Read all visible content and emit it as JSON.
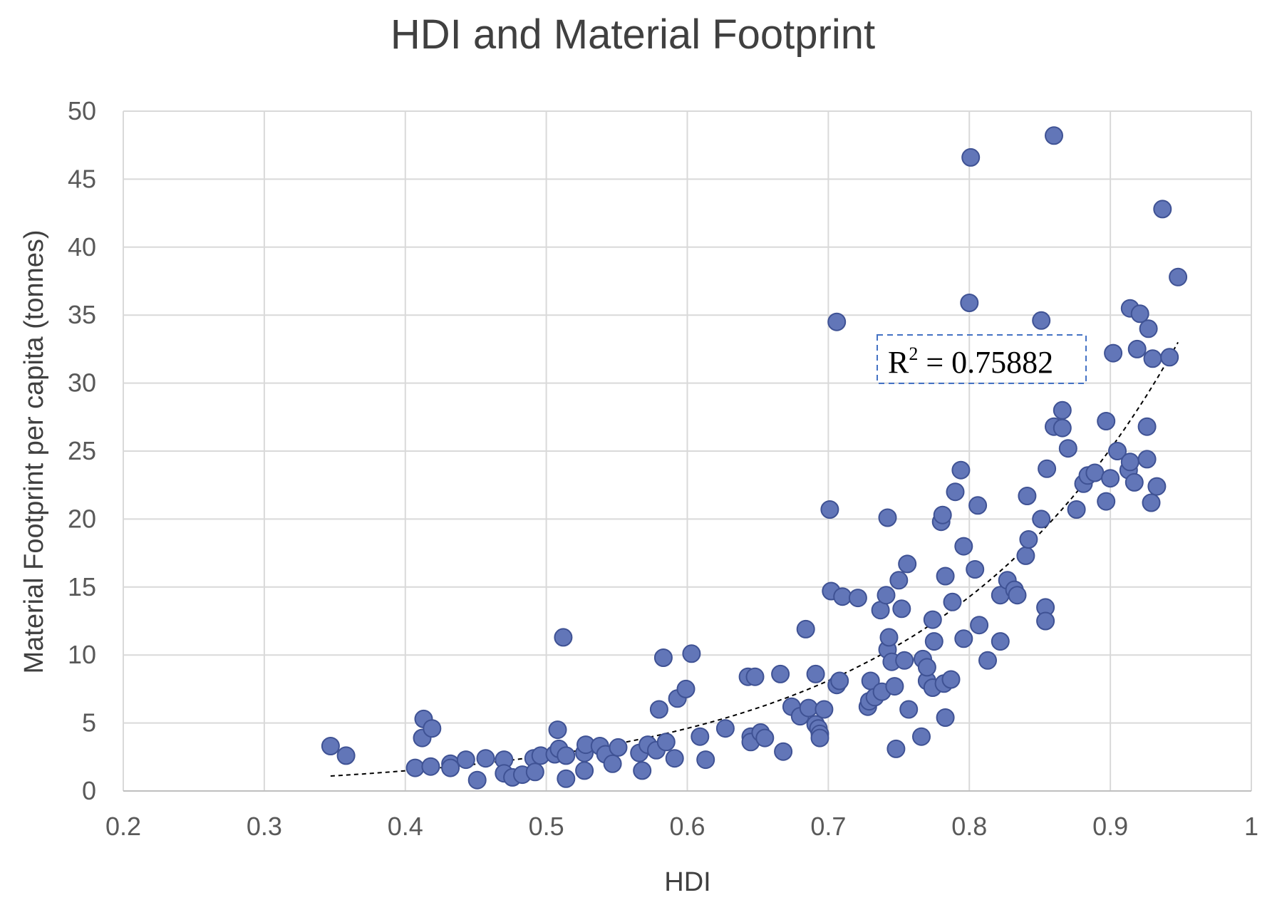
{
  "colors": {
    "point_fill": "#6276b8",
    "point_stroke": "#3f5294",
    "grid": "#d9d9d9",
    "trendline": "#000000",
    "r2_border": "#4472c4"
  },
  "chart_data": {
    "type": "scatter",
    "title": "HDI and Material Footprint",
    "xlabel": "HDI",
    "ylabel": "Material Footprint per capita (tonnes)",
    "xlim": [
      0.2,
      1
    ],
    "ylim": [
      0,
      50
    ],
    "x_ticks": [
      0.2,
      0.3,
      0.4,
      0.5,
      0.6,
      0.7,
      0.8,
      0.9,
      1
    ],
    "x_tick_labels": [
      "0.2",
      "0.3",
      "0.4",
      "0.5",
      "0.6",
      "0.7",
      "0.8",
      "0.9",
      "1"
    ],
    "y_ticks": [
      0,
      5,
      10,
      15,
      20,
      25,
      30,
      35,
      40,
      45,
      50
    ],
    "y_tick_labels": [
      "0",
      "5",
      "10",
      "15",
      "20",
      "25",
      "30",
      "35",
      "40",
      "45",
      "50"
    ],
    "grid": true,
    "legend": "none",
    "trendline": {
      "type": "exponential",
      "style": "dashed",
      "x_range": [
        0.347,
        0.948
      ],
      "points": [
        [
          0.347,
          1.1
        ],
        [
          0.45,
          1.9
        ],
        [
          0.55,
          3.0
        ],
        [
          0.65,
          5.2
        ],
        [
          0.7,
          6.9
        ],
        [
          0.75,
          9.5
        ],
        [
          0.8,
          13.2
        ],
        [
          0.85,
          18.5
        ],
        [
          0.9,
          24.8
        ],
        [
          0.948,
          33.0
        ]
      ],
      "annotation": "R² = 0.75882"
    },
    "points": [
      [
        0.347,
        3.3
      ],
      [
        0.358,
        2.6
      ],
      [
        0.407,
        1.7
      ],
      [
        0.412,
        3.9
      ],
      [
        0.413,
        5.3
      ],
      [
        0.419,
        4.6
      ],
      [
        0.418,
        1.8
      ],
      [
        0.432,
        2.0
      ],
      [
        0.432,
        1.7
      ],
      [
        0.443,
        2.3
      ],
      [
        0.451,
        0.8
      ],
      [
        0.457,
        2.4
      ],
      [
        0.47,
        2.3
      ],
      [
        0.47,
        1.3
      ],
      [
        0.476,
        1.0
      ],
      [
        0.483,
        1.2
      ],
      [
        0.491,
        2.4
      ],
      [
        0.492,
        1.4
      ],
      [
        0.496,
        2.6
      ],
      [
        0.506,
        2.7
      ],
      [
        0.508,
        4.5
      ],
      [
        0.509,
        3.1
      ],
      [
        0.512,
        11.3
      ],
      [
        0.514,
        0.9
      ],
      [
        0.514,
        2.6
      ],
      [
        0.527,
        1.5
      ],
      [
        0.527,
        2.8
      ],
      [
        0.528,
        3.4
      ],
      [
        0.538,
        3.3
      ],
      [
        0.542,
        2.7
      ],
      [
        0.547,
        2.0
      ],
      [
        0.551,
        3.2
      ],
      [
        0.566,
        2.8
      ],
      [
        0.568,
        1.5
      ],
      [
        0.572,
        3.4
      ],
      [
        0.578,
        3.0
      ],
      [
        0.58,
        6.0
      ],
      [
        0.583,
        9.8
      ],
      [
        0.585,
        3.6
      ],
      [
        0.591,
        2.4
      ],
      [
        0.593,
        6.8
      ],
      [
        0.599,
        7.5
      ],
      [
        0.603,
        10.1
      ],
      [
        0.609,
        4.0
      ],
      [
        0.613,
        2.3
      ],
      [
        0.627,
        4.6
      ],
      [
        0.643,
        8.4
      ],
      [
        0.645,
        4.0
      ],
      [
        0.645,
        3.6
      ],
      [
        0.648,
        8.4
      ],
      [
        0.652,
        4.3
      ],
      [
        0.655,
        3.9
      ],
      [
        0.666,
        8.6
      ],
      [
        0.668,
        2.9
      ],
      [
        0.674,
        6.2
      ],
      [
        0.68,
        5.5
      ],
      [
        0.684,
        11.9
      ],
      [
        0.686,
        6.1
      ],
      [
        0.691,
        8.6
      ],
      [
        0.691,
        4.9
      ],
      [
        0.693,
        4.6
      ],
      [
        0.694,
        4.2
      ],
      [
        0.694,
        3.9
      ],
      [
        0.697,
        6.0
      ],
      [
        0.701,
        20.7
      ],
      [
        0.702,
        14.7
      ],
      [
        0.706,
        34.5
      ],
      [
        0.706,
        7.8
      ],
      [
        0.708,
        8.1
      ],
      [
        0.71,
        14.3
      ],
      [
        0.721,
        14.2
      ],
      [
        0.728,
        6.2
      ],
      [
        0.729,
        6.6
      ],
      [
        0.73,
        8.1
      ],
      [
        0.733,
        6.9
      ],
      [
        0.737,
        13.3
      ],
      [
        0.738,
        7.3
      ],
      [
        0.741,
        14.4
      ],
      [
        0.742,
        10.4
      ],
      [
        0.743,
        11.3
      ],
      [
        0.742,
        20.1
      ],
      [
        0.745,
        9.5
      ],
      [
        0.747,
        7.7
      ],
      [
        0.748,
        3.1
      ],
      [
        0.75,
        15.5
      ],
      [
        0.752,
        13.4
      ],
      [
        0.754,
        9.6
      ],
      [
        0.756,
        16.7
      ],
      [
        0.757,
        6.0
      ],
      [
        0.766,
        4.0
      ],
      [
        0.767,
        9.7
      ],
      [
        0.77,
        8.1
      ],
      [
        0.77,
        9.1
      ],
      [
        0.774,
        7.6
      ],
      [
        0.774,
        12.6
      ],
      [
        0.775,
        11.0
      ],
      [
        0.78,
        19.8
      ],
      [
        0.781,
        20.3
      ],
      [
        0.782,
        7.9
      ],
      [
        0.783,
        15.8
      ],
      [
        0.783,
        5.4
      ],
      [
        0.787,
        8.2
      ],
      [
        0.788,
        13.9
      ],
      [
        0.79,
        22.0
      ],
      [
        0.794,
        23.6
      ],
      [
        0.796,
        18.0
      ],
      [
        0.796,
        11.2
      ],
      [
        0.8,
        35.9
      ],
      [
        0.801,
        46.6
      ],
      [
        0.804,
        16.3
      ],
      [
        0.806,
        21.0
      ],
      [
        0.807,
        12.2
      ],
      [
        0.813,
        9.6
      ],
      [
        0.822,
        11.0
      ],
      [
        0.822,
        14.4
      ],
      [
        0.827,
        15.5
      ],
      [
        0.832,
        14.8
      ],
      [
        0.834,
        14.4
      ],
      [
        0.84,
        17.3
      ],
      [
        0.841,
        21.7
      ],
      [
        0.842,
        18.5
      ],
      [
        0.851,
        34.6
      ],
      [
        0.851,
        20.0
      ],
      [
        0.854,
        13.5
      ],
      [
        0.854,
        12.5
      ],
      [
        0.855,
        23.7
      ],
      [
        0.86,
        48.2
      ],
      [
        0.86,
        26.8
      ],
      [
        0.866,
        28.0
      ],
      [
        0.866,
        26.7
      ],
      [
        0.87,
        25.2
      ],
      [
        0.876,
        20.7
      ],
      [
        0.881,
        22.6
      ],
      [
        0.884,
        23.2
      ],
      [
        0.889,
        23.4
      ],
      [
        0.897,
        27.2
      ],
      [
        0.897,
        21.3
      ],
      [
        0.9,
        23.0
      ],
      [
        0.902,
        32.2
      ],
      [
        0.905,
        25.0
      ],
      [
        0.913,
        23.6
      ],
      [
        0.914,
        24.2
      ],
      [
        0.914,
        35.5
      ],
      [
        0.917,
        22.7
      ],
      [
        0.919,
        32.5
      ],
      [
        0.921,
        35.1
      ],
      [
        0.926,
        26.8
      ],
      [
        0.926,
        24.4
      ],
      [
        0.927,
        34.0
      ],
      [
        0.929,
        21.2
      ],
      [
        0.93,
        31.8
      ],
      [
        0.933,
        22.4
      ],
      [
        0.937,
        42.8
      ],
      [
        0.942,
        31.9
      ],
      [
        0.948,
        37.8
      ]
    ]
  }
}
